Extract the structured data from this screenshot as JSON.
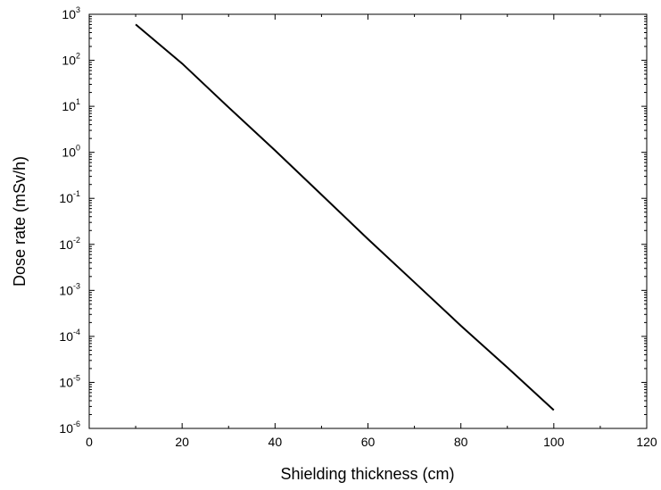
{
  "chart_data": {
    "type": "line",
    "title": "",
    "xlabel": "Shielding thickness (cm)",
    "ylabel": "Dose rate (mSv/h)",
    "xlim": [
      0,
      120
    ],
    "ylim": [
      1e-06,
      1000
    ],
    "yscale": "log",
    "grid": false,
    "legend": "none",
    "x_ticks": [
      "0",
      "20",
      "40",
      "60",
      "80",
      "100",
      "120"
    ],
    "y_ticks": [
      {
        "base": "10",
        "exp": "3"
      },
      {
        "base": "10",
        "exp": "2"
      },
      {
        "base": "10",
        "exp": "1"
      },
      {
        "base": "10",
        "exp": "0"
      },
      {
        "base": "10",
        "exp": "-1"
      },
      {
        "base": "10",
        "exp": "-2"
      },
      {
        "base": "10",
        "exp": "-3"
      },
      {
        "base": "10",
        "exp": "-4"
      },
      {
        "base": "10",
        "exp": "-5"
      },
      {
        "base": "10",
        "exp": "-6"
      }
    ],
    "series": [
      {
        "x": [
          10,
          20,
          30,
          40,
          50,
          60,
          70,
          80,
          90,
          100
        ],
        "values": [
          600,
          85,
          9.5,
          1.1,
          0.12,
          0.013,
          0.0015,
          0.00017,
          2.1e-05,
          2.5e-06
        ],
        "color": "#000000"
      }
    ]
  }
}
